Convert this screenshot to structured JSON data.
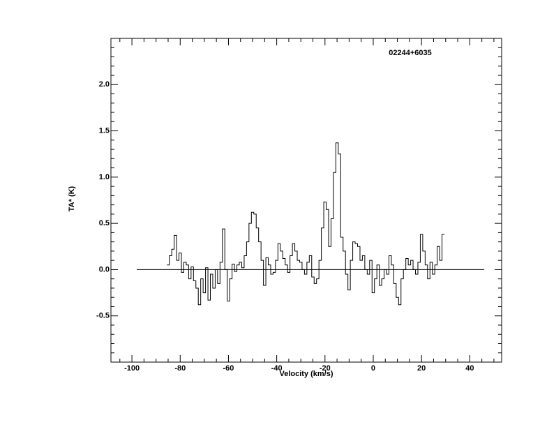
{
  "chart_data": {
    "type": "line",
    "drawstyle": "steps-mid",
    "annotation": "02244+6035",
    "xlabel": "Velocity (km/s)",
    "ylabel": "TA* (K)",
    "color": "#000000",
    "xlim": [
      -108.7,
      53.2
    ],
    "ylim": [
      -1.0,
      2.5
    ],
    "xticks": [
      -100,
      -80,
      -60,
      -40,
      -20,
      0,
      20,
      40
    ],
    "yticks": [
      {
        "value": -0.5,
        "label": "-0.5"
      },
      {
        "value": 0,
        "label": "0.0"
      },
      {
        "value": 0.5,
        "label": "0.5"
      },
      {
        "value": 1,
        "label": "1.0"
      },
      {
        "value": 1.5,
        "label": "1.5"
      },
      {
        "value": 2,
        "label": "2.0"
      }
    ],
    "xminorticks": [
      -105,
      -95,
      -90,
      -85,
      -75,
      -70,
      -65,
      -55,
      -50,
      -45,
      -35,
      -30,
      -25,
      -15,
      -10,
      -5,
      5,
      10,
      15,
      25,
      30,
      35,
      45,
      50
    ],
    "yminorticks": [
      -0.9,
      -0.8,
      -0.7,
      -0.6,
      -0.4,
      -0.3,
      -0.2,
      -0.1,
      0.1,
      0.2,
      0.3,
      0.4,
      0.6,
      0.7,
      0.8,
      0.9,
      1.1,
      1.2,
      1.3,
      1.4,
      1.6,
      1.7,
      1.8,
      1.9,
      2.1,
      2.2,
      2.3,
      2.4
    ],
    "hline": {
      "y": 0,
      "xlim": [
        -98,
        46
      ]
    },
    "x": [
      -85,
      -84,
      -83,
      -82,
      -81,
      -80,
      -79,
      -78,
      -77,
      -76,
      -75,
      -74,
      -73,
      -72,
      -71,
      -70,
      -69,
      -68,
      -67,
      -66,
      -65,
      -64,
      -63,
      -62,
      -61,
      -60,
      -59,
      -58,
      -57,
      -56,
      -55,
      -54,
      -53,
      -52,
      -51,
      -50,
      -49,
      -48,
      -47,
      -46,
      -45,
      -44,
      -43,
      -42,
      -41,
      -40,
      -39,
      -38,
      -37,
      -36,
      -35,
      -34,
      -33,
      -32,
      -31,
      -30,
      -29,
      -28,
      -27,
      -26,
      -25,
      -24,
      -23,
      -22,
      -21,
      -20,
      -19,
      -18,
      -17,
      -16,
      -15,
      -14,
      -13,
      -12,
      -11,
      -10,
      -9,
      -8,
      -7,
      -6,
      -5,
      -4,
      -3,
      -2,
      -1,
      0,
      1,
      2,
      3,
      4,
      5,
      6,
      7,
      8,
      9,
      10,
      11,
      12,
      13,
      14,
      15,
      16,
      17,
      18,
      19,
      20,
      21,
      22,
      23,
      24,
      25,
      26,
      27,
      28,
      29
    ],
    "values": [
      0.05,
      0.15,
      0.22,
      0.37,
      0.1,
      0.18,
      -0.03,
      0.08,
      0.05,
      -0.1,
      0.03,
      -0.12,
      -0.2,
      -0.38,
      -0.1,
      -0.25,
      0.02,
      -0.33,
      -0.05,
      -0.2,
      0.0,
      -0.15,
      0.08,
      0.44,
      0.0,
      -0.34,
      -0.1,
      0.06,
      -0.02,
      0.05,
      0.08,
      0.02,
      0.15,
      0.3,
      0.5,
      0.62,
      0.6,
      0.45,
      0.3,
      0.1,
      -0.17,
      0.13,
      0.05,
      -0.05,
      -0.03,
      0.1,
      0.28,
      0.2,
      0.12,
      0.05,
      -0.03,
      0.15,
      0.28,
      0.2,
      0.1,
      0.08,
      0.0,
      -0.05,
      0.08,
      0.15,
      -0.08,
      -0.15,
      -0.1,
      0.1,
      0.45,
      0.73,
      0.65,
      0.25,
      0.55,
      1.05,
      1.37,
      1.25,
      0.35,
      0.2,
      -0.05,
      -0.22,
      0.1,
      0.3,
      0.28,
      0.25,
      0.1,
      0.15,
      0.0,
      -0.05,
      0.1,
      -0.25,
      -0.1,
      0.05,
      -0.17,
      -0.1,
      0.0,
      -0.05,
      0.15,
      0.05,
      -0.15,
      -0.3,
      -0.38,
      -0.1,
      0.0,
      0.12,
      0.05,
      0.1,
      0.0,
      -0.05,
      0.08,
      0.38,
      0.2,
      0.05,
      -0.1,
      0.08,
      -0.05,
      0.05,
      0.25,
      0.1,
      0.38
    ]
  }
}
